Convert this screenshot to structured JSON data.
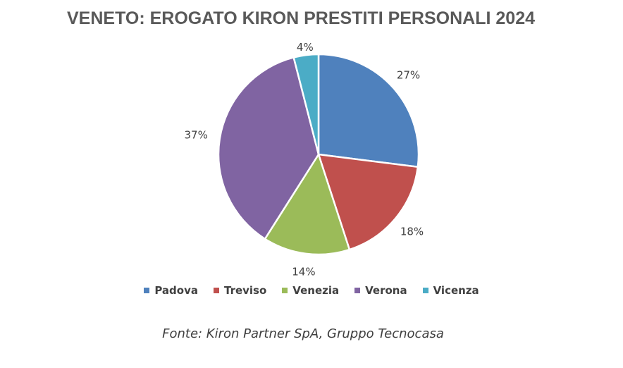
{
  "chart_data": {
    "type": "pie",
    "title": "VENETO: EROGATO KIRON PRESTITI PERSONALI 2024",
    "categories": [
      "Padova",
      "Treviso",
      "Venezia",
      "Verona",
      "Vicenza"
    ],
    "values": [
      27,
      18,
      14,
      37,
      4
    ],
    "value_labels": [
      "27%",
      "18%",
      "14%",
      "37%",
      "4%"
    ],
    "colors": [
      "#4F81BD",
      "#C0504D",
      "#9BBB59",
      "#8064A2",
      "#4BACC6"
    ],
    "legend_position": "bottom",
    "start": "top, clockwise"
  },
  "source": "Fonte: Kiron Partner SpA, Gruppo Tecnocasa"
}
